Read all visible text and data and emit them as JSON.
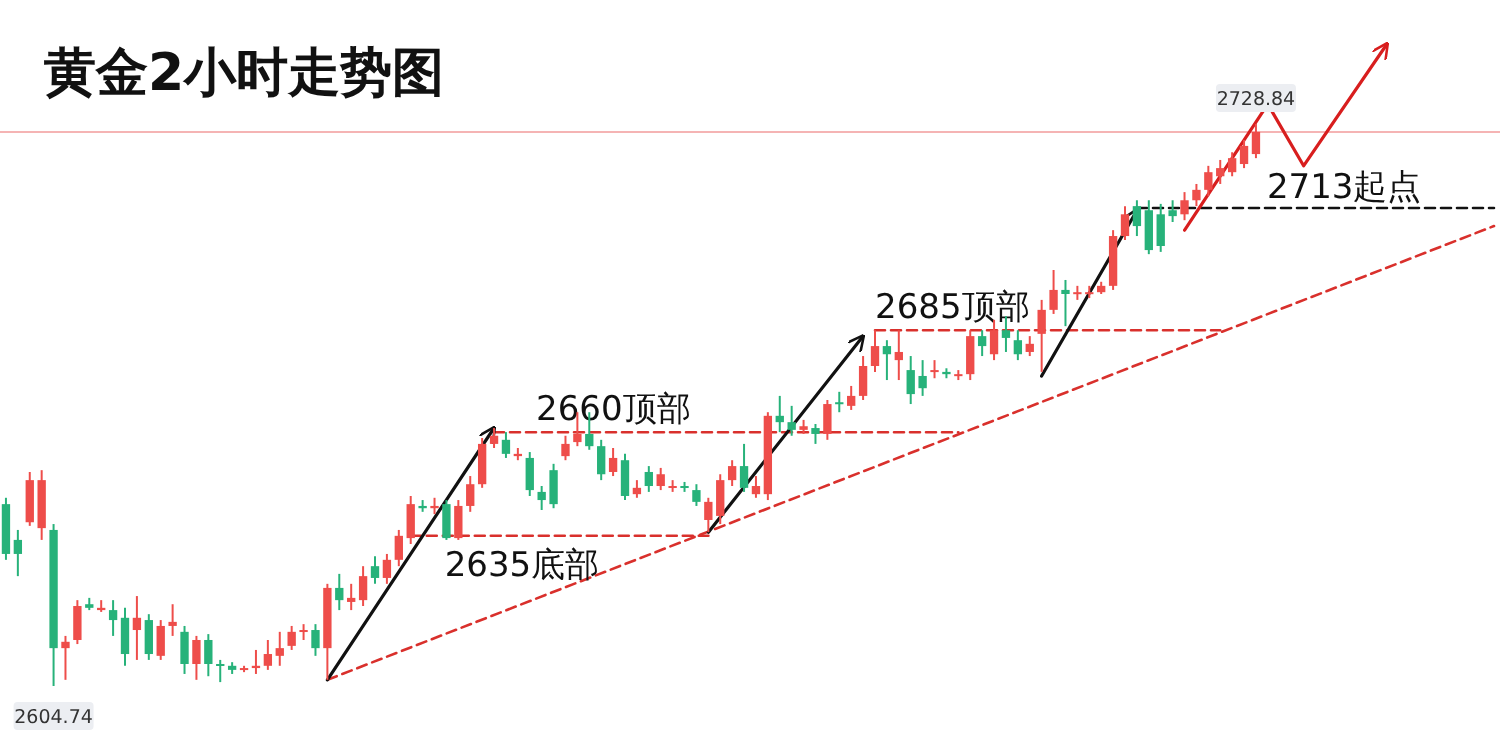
{
  "chart_data": {
    "type": "candlestick",
    "title": "黄金2小时走势图",
    "categories": [
      null,
      null,
      null,
      null,
      null,
      null,
      null,
      null,
      null,
      null,
      null,
      null,
      null,
      null,
      null,
      null,
      null,
      null,
      null,
      null,
      null,
      null,
      null,
      null,
      null,
      null,
      null,
      null,
      null,
      null,
      null,
      null,
      null,
      null,
      null,
      null,
      null,
      null,
      null,
      null,
      null,
      null,
      null,
      null,
      null,
      null,
      null,
      null,
      null,
      null,
      null,
      null,
      null,
      null,
      null,
      null,
      null,
      null,
      null,
      null,
      null,
      null,
      null,
      null,
      null,
      null,
      null,
      null,
      null,
      null,
      null,
      null,
      null,
      null,
      null,
      null,
      null,
      null,
      null,
      null,
      null,
      null,
      null,
      null,
      null,
      null,
      null,
      null,
      null,
      null,
      null,
      null,
      null,
      null,
      null,
      null,
      null,
      null,
      null,
      null,
      null,
      null,
      null,
      null,
      null,
      null,
      null,
      null,
      null,
      null,
      null,
      null,
      null,
      null,
      null,
      null,
      null,
      null,
      null,
      null,
      null,
      null,
      null,
      null,
      null,
      null
    ],
    "colors": [
      "#27b27a",
      "#27b27a",
      "#ee4d4a",
      "#ee4d4a",
      "#27b27a",
      "#ee4d4a",
      "#ee4d4a",
      "#27b27a",
      "#ee4d4a",
      "#27b27a",
      "#27b27a",
      "#ee4d4a",
      "#27b27a",
      "#ee4d4a",
      "#ee4d4a",
      "#27b27a",
      "#ee4d4a",
      "#27b27a",
      "#27b27a",
      "#27b27a",
      "#ee4d4a",
      "#ee4d4a",
      "#ee4d4a",
      "#ee4d4a",
      "#ee4d4a",
      "#ee4d4a",
      "#27b27a",
      "#ee4d4a",
      "#27b27a",
      "#ee4d4a",
      "#ee4d4a",
      "#27b27a",
      "#ee4d4a",
      "#ee4d4a",
      "#ee4d4a",
      "#27b27a",
      "#ee4d4a",
      "#27b27a",
      "#ee4d4a",
      "#ee4d4a",
      "#ee4d4a",
      "#ee4d4a",
      "#27b27a",
      "#ee4d4a",
      "#27b27a",
      "#27b27a",
      "#27b27a",
      "#ee4d4a",
      "#ee4d4a",
      "#27b27a",
      "#27b27a",
      "#ee4d4a",
      "#27b27a",
      "#ee4d4a",
      "#27b27a",
      "#ee4d4a",
      "#ee4d4a",
      "#27b27a",
      "#27b27a",
      "#ee4d4a",
      "#ee4d4a",
      "#ee4d4a",
      "#27b27a",
      "#ee4d4a",
      "#ee4d4a",
      "#27b27a",
      "#27b27a",
      "#ee4d4a",
      "#27b27a",
      "#ee4d4a",
      "#27b27a",
      "#ee4d4a",
      "#ee4d4a",
      "#ee4d4a",
      "#27b27a",
      "#ee4d4a",
      "#27b27a",
      "#27b27a",
      "#ee4d4a",
      "#27b27a",
      "#ee4d4a",
      "#ee4d4a",
      "#27b27a",
      "#ee4d4a",
      "#27b27a",
      "#27b27a",
      "#ee4d4a",
      "#ee4d4a",
      "#ee4d4a",
      "#27b27a",
      "#ee4d4a",
      "#ee4d4a",
      "#ee4d4a",
      "#ee4d4a",
      "#ee4d4a",
      "#27b27a",
      "#27b27a",
      "#27b27a",
      "#27b27a",
      "#ee4d4a",
      "#ee4d4a",
      "#ee4d4a",
      "#ee4d4a",
      "#ee4d4a",
      "#ee4d4a",
      "#ee4d4a",
      null,
      null,
      null,
      null,
      null,
      null,
      null,
      null,
      null,
      null,
      null,
      null,
      null,
      null,
      null,
      null,
      null,
      null,
      null,
      null
    ],
    "ohlc": [
      [
        2644.9,
        2646.3,
        2632.6,
        2633.9
      ],
      [
        2637.0,
        2639.2,
        2629.0,
        2633.9
      ],
      [
        2640.9,
        2652.0,
        2640.1,
        2650.2
      ],
      [
        2639.6,
        2652.4,
        2637.0,
        2650.2
      ],
      [
        2639.2,
        2640.5,
        2604.74,
        2613.1
      ],
      [
        2613.1,
        2615.8,
        2606.1,
        2614.5
      ],
      [
        2614.9,
        2623.7,
        2614.0,
        2622.4
      ],
      [
        2622.8,
        2624.2,
        2621.5,
        2622.0
      ],
      [
        2621.5,
        2623.7,
        2621.1,
        2622.0
      ],
      [
        2621.5,
        2623.7,
        2615.8,
        2619.3
      ],
      [
        2619.8,
        2622.0,
        2609.2,
        2611.8
      ],
      [
        2617.1,
        2624.6,
        2610.5,
        2619.8
      ],
      [
        2619.3,
        2620.6,
        2610.5,
        2611.8
      ],
      [
        2611.4,
        2619.3,
        2610.5,
        2618.0
      ],
      [
        2618.0,
        2622.8,
        2615.8,
        2618.9
      ],
      [
        2616.7,
        2618.0,
        2607.4,
        2609.6
      ],
      [
        2609.6,
        2615.8,
        2606.1,
        2614.9
      ],
      [
        2614.9,
        2616.2,
        2606.9,
        2609.6
      ],
      [
        2609.6,
        2610.5,
        2605.6,
        2609.2
      ],
      [
        2609.2,
        2610.0,
        2607.4,
        2608.3
      ],
      [
        2608.3,
        2609.2,
        2607.8,
        2608.7
      ],
      [
        2608.7,
        2612.7,
        2607.4,
        2609.2
      ],
      [
        2609.2,
        2614.9,
        2608.3,
        2611.8
      ],
      [
        2611.4,
        2616.7,
        2609.2,
        2613.1
      ],
      [
        2613.6,
        2618.0,
        2612.7,
        2616.7
      ],
      [
        2616.7,
        2618.4,
        2614.9,
        2617.1
      ],
      [
        2617.1,
        2618.4,
        2611.4,
        2613.1
      ],
      [
        2613.1,
        2627.3,
        2606.1,
        2626.4
      ],
      [
        2626.4,
        2629.5,
        2621.5,
        2623.7
      ],
      [
        2623.3,
        2627.3,
        2621.5,
        2624.2
      ],
      [
        2623.7,
        2631.2,
        2622.4,
        2629.0
      ],
      [
        2631.2,
        2633.4,
        2627.3,
        2628.6
      ],
      [
        2628.6,
        2633.9,
        2627.3,
        2632.6
      ],
      [
        2632.6,
        2639.2,
        2631.2,
        2637.9
      ],
      [
        2637.4,
        2646.7,
        2636.1,
        2644.9
      ],
      [
        2644.5,
        2645.8,
        2643.2,
        2644.0
      ],
      [
        2644.0,
        2646.3,
        2642.7,
        2644.5
      ],
      [
        2644.9,
        2645.8,
        2637.0,
        2637.4
      ],
      [
        2637.4,
        2645.8,
        2637.0,
        2644.5
      ],
      [
        2644.5,
        2651.1,
        2643.2,
        2649.3
      ],
      [
        2649.3,
        2659.5,
        2648.5,
        2658.2
      ],
      [
        2658.2,
        2661.7,
        2657.3,
        2660.0
      ],
      [
        2659.1,
        2660.8,
        2655.1,
        2656.0
      ],
      [
        2655.5,
        2657.3,
        2654.6,
        2656.0
      ],
      [
        2655.1,
        2656.4,
        2646.7,
        2648.0
      ],
      [
        2647.6,
        2648.9,
        2643.6,
        2645.8
      ],
      [
        2652.4,
        2653.8,
        2644.0,
        2644.9
      ],
      [
        2655.5,
        2660.0,
        2654.6,
        2658.2
      ],
      [
        2658.6,
        2665.2,
        2657.7,
        2660.4
      ],
      [
        2660.4,
        2665.2,
        2656.9,
        2657.7
      ],
      [
        2657.7,
        2659.1,
        2650.2,
        2651.5
      ],
      [
        2652.0,
        2657.3,
        2651.1,
        2655.1
      ],
      [
        2654.6,
        2656.0,
        2645.8,
        2646.7
      ],
      [
        2647.1,
        2650.2,
        2646.3,
        2648.5
      ],
      [
        2652.0,
        2653.3,
        2647.6,
        2648.9
      ],
      [
        2648.9,
        2652.9,
        2648.0,
        2651.5
      ],
      [
        2648.5,
        2650.2,
        2647.6,
        2648.9
      ],
      [
        2648.9,
        2649.8,
        2647.6,
        2648.5
      ],
      [
        2648.0,
        2649.3,
        2644.5,
        2645.4
      ],
      [
        2641.4,
        2646.3,
        2638.7,
        2645.4
      ],
      [
        2642.3,
        2651.5,
        2640.5,
        2650.2
      ],
      [
        2650.2,
        2654.6,
        2648.9,
        2653.3
      ],
      [
        2653.3,
        2658.2,
        2647.6,
        2648.5
      ],
      [
        2647.1,
        2651.1,
        2646.3,
        2648.9
      ],
      [
        2647.1,
        2665.2,
        2645.8,
        2664.4
      ],
      [
        2664.4,
        2668.8,
        2660.8,
        2663.0
      ],
      [
        2663.0,
        2666.6,
        2660.0,
        2661.3
      ],
      [
        2661.3,
        2663.5,
        2660.4,
        2662.1
      ],
      [
        2661.7,
        2662.6,
        2658.2,
        2660.4
      ],
      [
        2660.4,
        2667.9,
        2659.1,
        2667.0
      ],
      [
        2667.4,
        2669.7,
        2665.2,
        2667.0
      ],
      [
        2666.6,
        2671.0,
        2665.7,
        2668.8
      ],
      [
        2668.8,
        2677.6,
        2667.9,
        2675.4
      ],
      [
        2675.4,
        2683.3,
        2674.1,
        2679.8
      ],
      [
        2679.8,
        2681.1,
        2672.3,
        2678.0
      ],
      [
        2676.7,
        2683.3,
        2672.3,
        2678.5
      ],
      [
        2674.5,
        2677.6,
        2667.0,
        2669.2
      ],
      [
        2673.2,
        2676.7,
        2668.8,
        2670.5
      ],
      [
        2674.1,
        2676.7,
        2672.7,
        2674.5
      ],
      [
        2674.1,
        2674.9,
        2672.7,
        2673.6
      ],
      [
        2673.2,
        2674.5,
        2672.3,
        2673.6
      ],
      [
        2673.6,
        2683.3,
        2672.3,
        2682.0
      ],
      [
        2682.0,
        2683.3,
        2677.6,
        2679.8
      ],
      [
        2678.0,
        2685.6,
        2676.7,
        2683.3
      ],
      [
        2683.3,
        2686.4,
        2678.5,
        2681.6
      ],
      [
        2681.1,
        2683.3,
        2676.7,
        2678.0
      ],
      [
        2678.5,
        2682.0,
        2677.6,
        2680.3
      ],
      [
        2682.5,
        2690.0,
        2674.1,
        2687.8
      ],
      [
        2687.8,
        2696.6,
        2686.9,
        2692.2
      ],
      [
        2692.2,
        2694.4,
        2684.2,
        2691.3
      ],
      [
        2691.3,
        2693.1,
        2690.0,
        2691.7
      ],
      [
        2691.3,
        2693.1,
        2690.4,
        2691.7
      ],
      [
        2691.7,
        2694.0,
        2691.3,
        2693.1
      ],
      [
        2693.1,
        2705.4,
        2692.2,
        2704.1
      ],
      [
        2704.1,
        2710.7,
        2703.2,
        2708.9
      ],
      [
        2710.7,
        2712.0,
        2704.1,
        2706.3
      ],
      [
        2709.8,
        2712.0,
        2700.1,
        2701.0
      ],
      [
        2708.9,
        2711.2,
        2700.6,
        2701.9
      ],
      [
        2709.8,
        2712.0,
        2707.2,
        2708.5
      ],
      [
        2708.9,
        2713.8,
        2707.6,
        2712.0
      ],
      [
        2712.0,
        2715.6,
        2710.7,
        2714.3
      ],
      [
        2714.3,
        2719.6,
        2712.9,
        2718.2
      ],
      [
        2717.3,
        2720.9,
        2715.6,
        2719.1
      ],
      [
        2718.2,
        2722.6,
        2717.3,
        2721.3
      ],
      [
        2720.0,
        2725.3,
        2719.1,
        2724.0
      ],
      [
        2722.2,
        2728.84,
        2721.3,
        2727.1
      ],
      null,
      null,
      null,
      null,
      null,
      null,
      null,
      null,
      null,
      null,
      null,
      null,
      null,
      null,
      null,
      null,
      null,
      null,
      null,
      null
    ],
    "series": [
      {
        "type": "line",
        "color": "#d9302c",
        "line_style": "dashed",
        "values": [
          null,
          null,
          null,
          null,
          null,
          null,
          null,
          null,
          null,
          null,
          null,
          null,
          null,
          null,
          null,
          null,
          null,
          null,
          null,
          null,
          null,
          null,
          null,
          null,
          null,
          null,
          null,
          2606.1,
          null,
          null,
          null,
          null,
          null,
          null,
          null,
          null,
          null,
          null,
          null,
          null,
          null,
          null,
          null,
          null,
          null,
          null,
          null,
          null,
          null,
          null,
          null,
          null,
          null,
          null,
          null,
          null,
          null,
          null,
          null,
          null,
          null,
          null,
          null,
          null,
          null,
          null,
          null,
          null,
          null,
          null,
          null,
          null,
          null,
          null,
          null,
          null,
          null,
          null,
          null,
          null,
          null,
          null,
          null,
          null,
          null,
          null,
          null,
          null,
          null,
          null,
          null,
          null,
          null,
          null,
          null,
          null,
          null,
          null,
          null,
          null,
          null,
          null,
          null,
          null,
          null,
          null,
          null,
          null,
          null,
          null,
          null,
          null,
          null,
          null,
          null,
          null,
          null,
          null,
          null,
          null,
          null,
          null,
          null,
          null,
          null,
          2706.3
        ]
      },
      {
        "type": "line",
        "name": "2635底部",
        "color": "#d9302c",
        "line_style": "dashed",
        "values": [
          null,
          null,
          null,
          null,
          null,
          null,
          null,
          null,
          null,
          null,
          null,
          null,
          null,
          null,
          null,
          null,
          null,
          null,
          null,
          null,
          null,
          null,
          null,
          null,
          null,
          null,
          null,
          null,
          null,
          null,
          null,
          null,
          null,
          null,
          2637.9,
          null,
          null,
          null,
          null,
          null,
          null,
          null,
          null,
          null,
          null,
          null,
          null,
          null,
          null,
          null,
          null,
          null,
          null,
          null,
          null,
          null,
          null,
          null,
          null,
          2637.9,
          null,
          null,
          null,
          null,
          null,
          null,
          null,
          null,
          null,
          null,
          null,
          null,
          null,
          null,
          null,
          null,
          null,
          null,
          null,
          null,
          null,
          null,
          null,
          null,
          null,
          null,
          null,
          null,
          null,
          null,
          null,
          null,
          null,
          null,
          null,
          null,
          null,
          null,
          null,
          null,
          null,
          null,
          null,
          null,
          null,
          null,
          null,
          null,
          null,
          null,
          null,
          null,
          null,
          null,
          null,
          null,
          null,
          null,
          null,
          null,
          null,
          null,
          null,
          null,
          null,
          null
        ]
      },
      {
        "type": "line",
        "name": "2660顶部",
        "color": "#d9302c",
        "line_style": "dashed",
        "values": [
          null,
          null,
          null,
          null,
          null,
          null,
          null,
          null,
          null,
          null,
          null,
          null,
          null,
          null,
          null,
          null,
          null,
          null,
          null,
          null,
          null,
          null,
          null,
          null,
          null,
          null,
          null,
          null,
          null,
          null,
          null,
          null,
          null,
          null,
          null,
          null,
          null,
          null,
          null,
          null,
          null,
          2660.8,
          null,
          null,
          null,
          null,
          null,
          null,
          null,
          null,
          null,
          null,
          null,
          null,
          null,
          null,
          null,
          null,
          null,
          null,
          null,
          null,
          null,
          null,
          null,
          null,
          null,
          null,
          null,
          null,
          null,
          null,
          null,
          null,
          null,
          null,
          null,
          null,
          null,
          null,
          2660.8,
          null,
          null,
          null,
          null,
          null,
          null,
          null,
          null,
          null,
          null,
          null,
          null,
          null,
          null,
          null,
          null,
          null,
          null,
          null,
          null,
          null,
          null,
          null,
          null,
          null,
          null,
          null,
          null,
          null,
          null,
          null,
          null,
          null,
          null,
          null,
          null,
          null,
          null,
          null,
          null,
          null,
          null,
          null,
          null,
          null
        ]
      },
      {
        "type": "line",
        "name": "2685顶部",
        "color": "#d9302c",
        "line_style": "dashed",
        "values": [
          null,
          null,
          null,
          null,
          null,
          null,
          null,
          null,
          null,
          null,
          null,
          null,
          null,
          null,
          null,
          null,
          null,
          null,
          null,
          null,
          null,
          null,
          null,
          null,
          null,
          null,
          null,
          null,
          null,
          null,
          null,
          null,
          null,
          null,
          null,
          null,
          null,
          null,
          null,
          null,
          null,
          null,
          null,
          null,
          null,
          null,
          null,
          null,
          null,
          null,
          null,
          null,
          null,
          null,
          null,
          null,
          null,
          null,
          null,
          null,
          null,
          null,
          null,
          null,
          null,
          null,
          null,
          null,
          null,
          null,
          null,
          null,
          null,
          2683.3,
          null,
          null,
          null,
          null,
          null,
          null,
          null,
          null,
          null,
          null,
          null,
          null,
          null,
          null,
          null,
          null,
          null,
          null,
          null,
          null,
          null,
          null,
          null,
          null,
          null,
          null,
          null,
          null,
          2683.3,
          null,
          null,
          null,
          null,
          null,
          null,
          null,
          null,
          null,
          null,
          null,
          null,
          null,
          null,
          null,
          null,
          null,
          null,
          null,
          null,
          null,
          null,
          null
        ]
      },
      {
        "type": "line",
        "name": "2713起点",
        "color": "#111111",
        "line_style": "dashed",
        "values": [
          null,
          null,
          null,
          null,
          null,
          null,
          null,
          null,
          null,
          null,
          null,
          null,
          null,
          null,
          null,
          null,
          null,
          null,
          null,
          null,
          null,
          null,
          null,
          null,
          null,
          null,
          null,
          null,
          null,
          null,
          null,
          null,
          null,
          null,
          null,
          null,
          null,
          null,
          null,
          null,
          null,
          null,
          null,
          null,
          null,
          null,
          null,
          null,
          null,
          null,
          null,
          null,
          null,
          null,
          null,
          null,
          null,
          null,
          null,
          null,
          null,
          null,
          null,
          null,
          null,
          null,
          null,
          null,
          null,
          null,
          null,
          null,
          null,
          null,
          null,
          null,
          null,
          null,
          null,
          null,
          null,
          null,
          null,
          null,
          null,
          null,
          null,
          null,
          null,
          null,
          null,
          null,
          null,
          null,
          null,
          2710.3,
          null,
          null,
          null,
          null,
          null,
          null,
          null,
          null,
          null,
          null,
          null,
          null,
          null,
          null,
          null,
          null,
          null,
          null,
          null,
          null,
          null,
          null,
          null,
          null,
          null,
          null,
          null,
          null,
          null,
          2710.3
        ]
      },
      {
        "type": "line",
        "color": "#111111",
        "line_style": "solid",
        "values": [
          null,
          null,
          null,
          null,
          null,
          null,
          null,
          null,
          null,
          null,
          null,
          null,
          null,
          null,
          null,
          null,
          null,
          null,
          null,
          null,
          null,
          null,
          null,
          null,
          null,
          null,
          null,
          2606.1,
          null,
          null,
          null,
          null,
          null,
          null,
          null,
          null,
          null,
          null,
          null,
          null,
          null,
          2661.7,
          null,
          null,
          null,
          null,
          null,
          null,
          null,
          null,
          null,
          null,
          null,
          null,
          null,
          null,
          null,
          null,
          null,
          null,
          null,
          null,
          null,
          null,
          null,
          null,
          null,
          null,
          null,
          null,
          null,
          null,
          null,
          null,
          null,
          null,
          null,
          null,
          null,
          null,
          null,
          null,
          null,
          null,
          null,
          null,
          null,
          null,
          null,
          null,
          null,
          null,
          null,
          null,
          null,
          null,
          null,
          null,
          null,
          null,
          null,
          null,
          null,
          null,
          null,
          null,
          null,
          null,
          null,
          null,
          null,
          null,
          null,
          null,
          null,
          null,
          null,
          null,
          null,
          null,
          null,
          null,
          null,
          null,
          null,
          null
        ]
      },
      {
        "type": "line",
        "color": "#111111",
        "line_style": "solid",
        "values": [
          null,
          null,
          null,
          null,
          null,
          null,
          null,
          null,
          null,
          null,
          null,
          null,
          null,
          null,
          null,
          null,
          null,
          null,
          null,
          null,
          null,
          null,
          null,
          null,
          null,
          null,
          null,
          null,
          null,
          null,
          null,
          null,
          null,
          null,
          null,
          null,
          null,
          null,
          null,
          null,
          null,
          null,
          null,
          null,
          null,
          null,
          null,
          null,
          null,
          null,
          null,
          null,
          null,
          null,
          null,
          null,
          null,
          null,
          null,
          2638.7,
          null,
          null,
          null,
          null,
          null,
          null,
          null,
          null,
          null,
          null,
          null,
          null,
          2682.0,
          null,
          null,
          null,
          null,
          null,
          null,
          null,
          null,
          null,
          null,
          null,
          null,
          null,
          null,
          null,
          null,
          null,
          null,
          null,
          null,
          null,
          null,
          null,
          null,
          null,
          null,
          null,
          null,
          null,
          null,
          null,
          null,
          null,
          null,
          null,
          null,
          null,
          null,
          null,
          null,
          null,
          null,
          null,
          null,
          null,
          null,
          null,
          null,
          null,
          null,
          null,
          null,
          null
        ]
      },
      {
        "type": "line",
        "color": "#111111",
        "line_style": "solid",
        "values": [
          null,
          null,
          null,
          null,
          null,
          null,
          null,
          null,
          null,
          null,
          null,
          null,
          null,
          null,
          null,
          null,
          null,
          null,
          null,
          null,
          null,
          null,
          null,
          null,
          null,
          null,
          null,
          null,
          null,
          null,
          null,
          null,
          null,
          null,
          null,
          null,
          null,
          null,
          null,
          null,
          null,
          null,
          null,
          null,
          null,
          null,
          null,
          null,
          null,
          null,
          null,
          null,
          null,
          null,
          null,
          null,
          null,
          null,
          null,
          null,
          null,
          null,
          null,
          null,
          null,
          null,
          null,
          null,
          null,
          null,
          null,
          null,
          null,
          null,
          null,
          null,
          null,
          null,
          null,
          null,
          null,
          null,
          null,
          null,
          null,
          null,
          null,
          2673.2,
          null,
          null,
          null,
          null,
          null,
          null,
          null,
          2709.8,
          null,
          null,
          null,
          null,
          null,
          null,
          null,
          null,
          null,
          null,
          null,
          null,
          null,
          null,
          null,
          null,
          null,
          null,
          null,
          null,
          null,
          null,
          null,
          null,
          null,
          null,
          null,
          null,
          null,
          null
        ]
      },
      {
        "type": "line",
        "color": "#d81e1e",
        "line_style": "solid",
        "values": [
          null,
          null,
          null,
          null,
          null,
          null,
          null,
          null,
          null,
          null,
          null,
          null,
          null,
          null,
          null,
          null,
          null,
          null,
          null,
          null,
          null,
          null,
          null,
          null,
          null,
          null,
          null,
          null,
          null,
          null,
          null,
          null,
          null,
          null,
          null,
          null,
          null,
          null,
          null,
          null,
          null,
          null,
          null,
          null,
          null,
          null,
          null,
          null,
          null,
          null,
          null,
          null,
          null,
          null,
          null,
          null,
          null,
          null,
          null,
          null,
          null,
          null,
          null,
          null,
          null,
          null,
          null,
          null,
          null,
          null,
          null,
          null,
          null,
          null,
          null,
          null,
          null,
          null,
          null,
          null,
          null,
          null,
          null,
          null,
          null,
          null,
          null,
          null,
          null,
          null,
          null,
          null,
          null,
          null,
          null,
          null,
          null,
          null,
          null,
          2705.4,
          null,
          null,
          null,
          null,
          null,
          null,
          2733.2,
          null,
          null,
          2719.6,
          null,
          null,
          null,
          null,
          null,
          null,
          2746.5,
          null,
          null,
          null,
          null,
          null,
          null,
          null,
          null,
          null
        ]
      }
    ],
    "ref_lines": [
      {
        "axis": "y",
        "value": 2727.1,
        "color": "#f5b4b4"
      }
    ],
    "annotations": [
      {
        "text": "2728.84",
        "y": 2728.84
      },
      {
        "text": "2604.74",
        "y": 2604.74
      }
    ]
  }
}
